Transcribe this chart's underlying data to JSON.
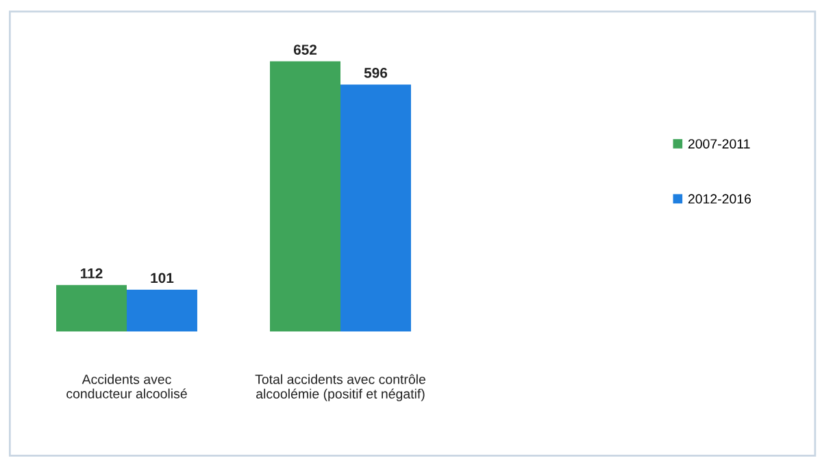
{
  "chart_data": {
    "type": "bar",
    "categories": [
      "Accidents avec\nconducteur alcoolisé",
      "Total accidents avec contrôle\nalcoolémie (positif et négatif)"
    ],
    "series": [
      {
        "name": "2007-2011",
        "color": "#3fa55a",
        "values": [
          112,
          652
        ]
      },
      {
        "name": "2012-2016",
        "color": "#1f7fe0",
        "values": [
          101,
          596
        ]
      }
    ],
    "data_labels": true,
    "legend": "right",
    "grid": false
  }
}
